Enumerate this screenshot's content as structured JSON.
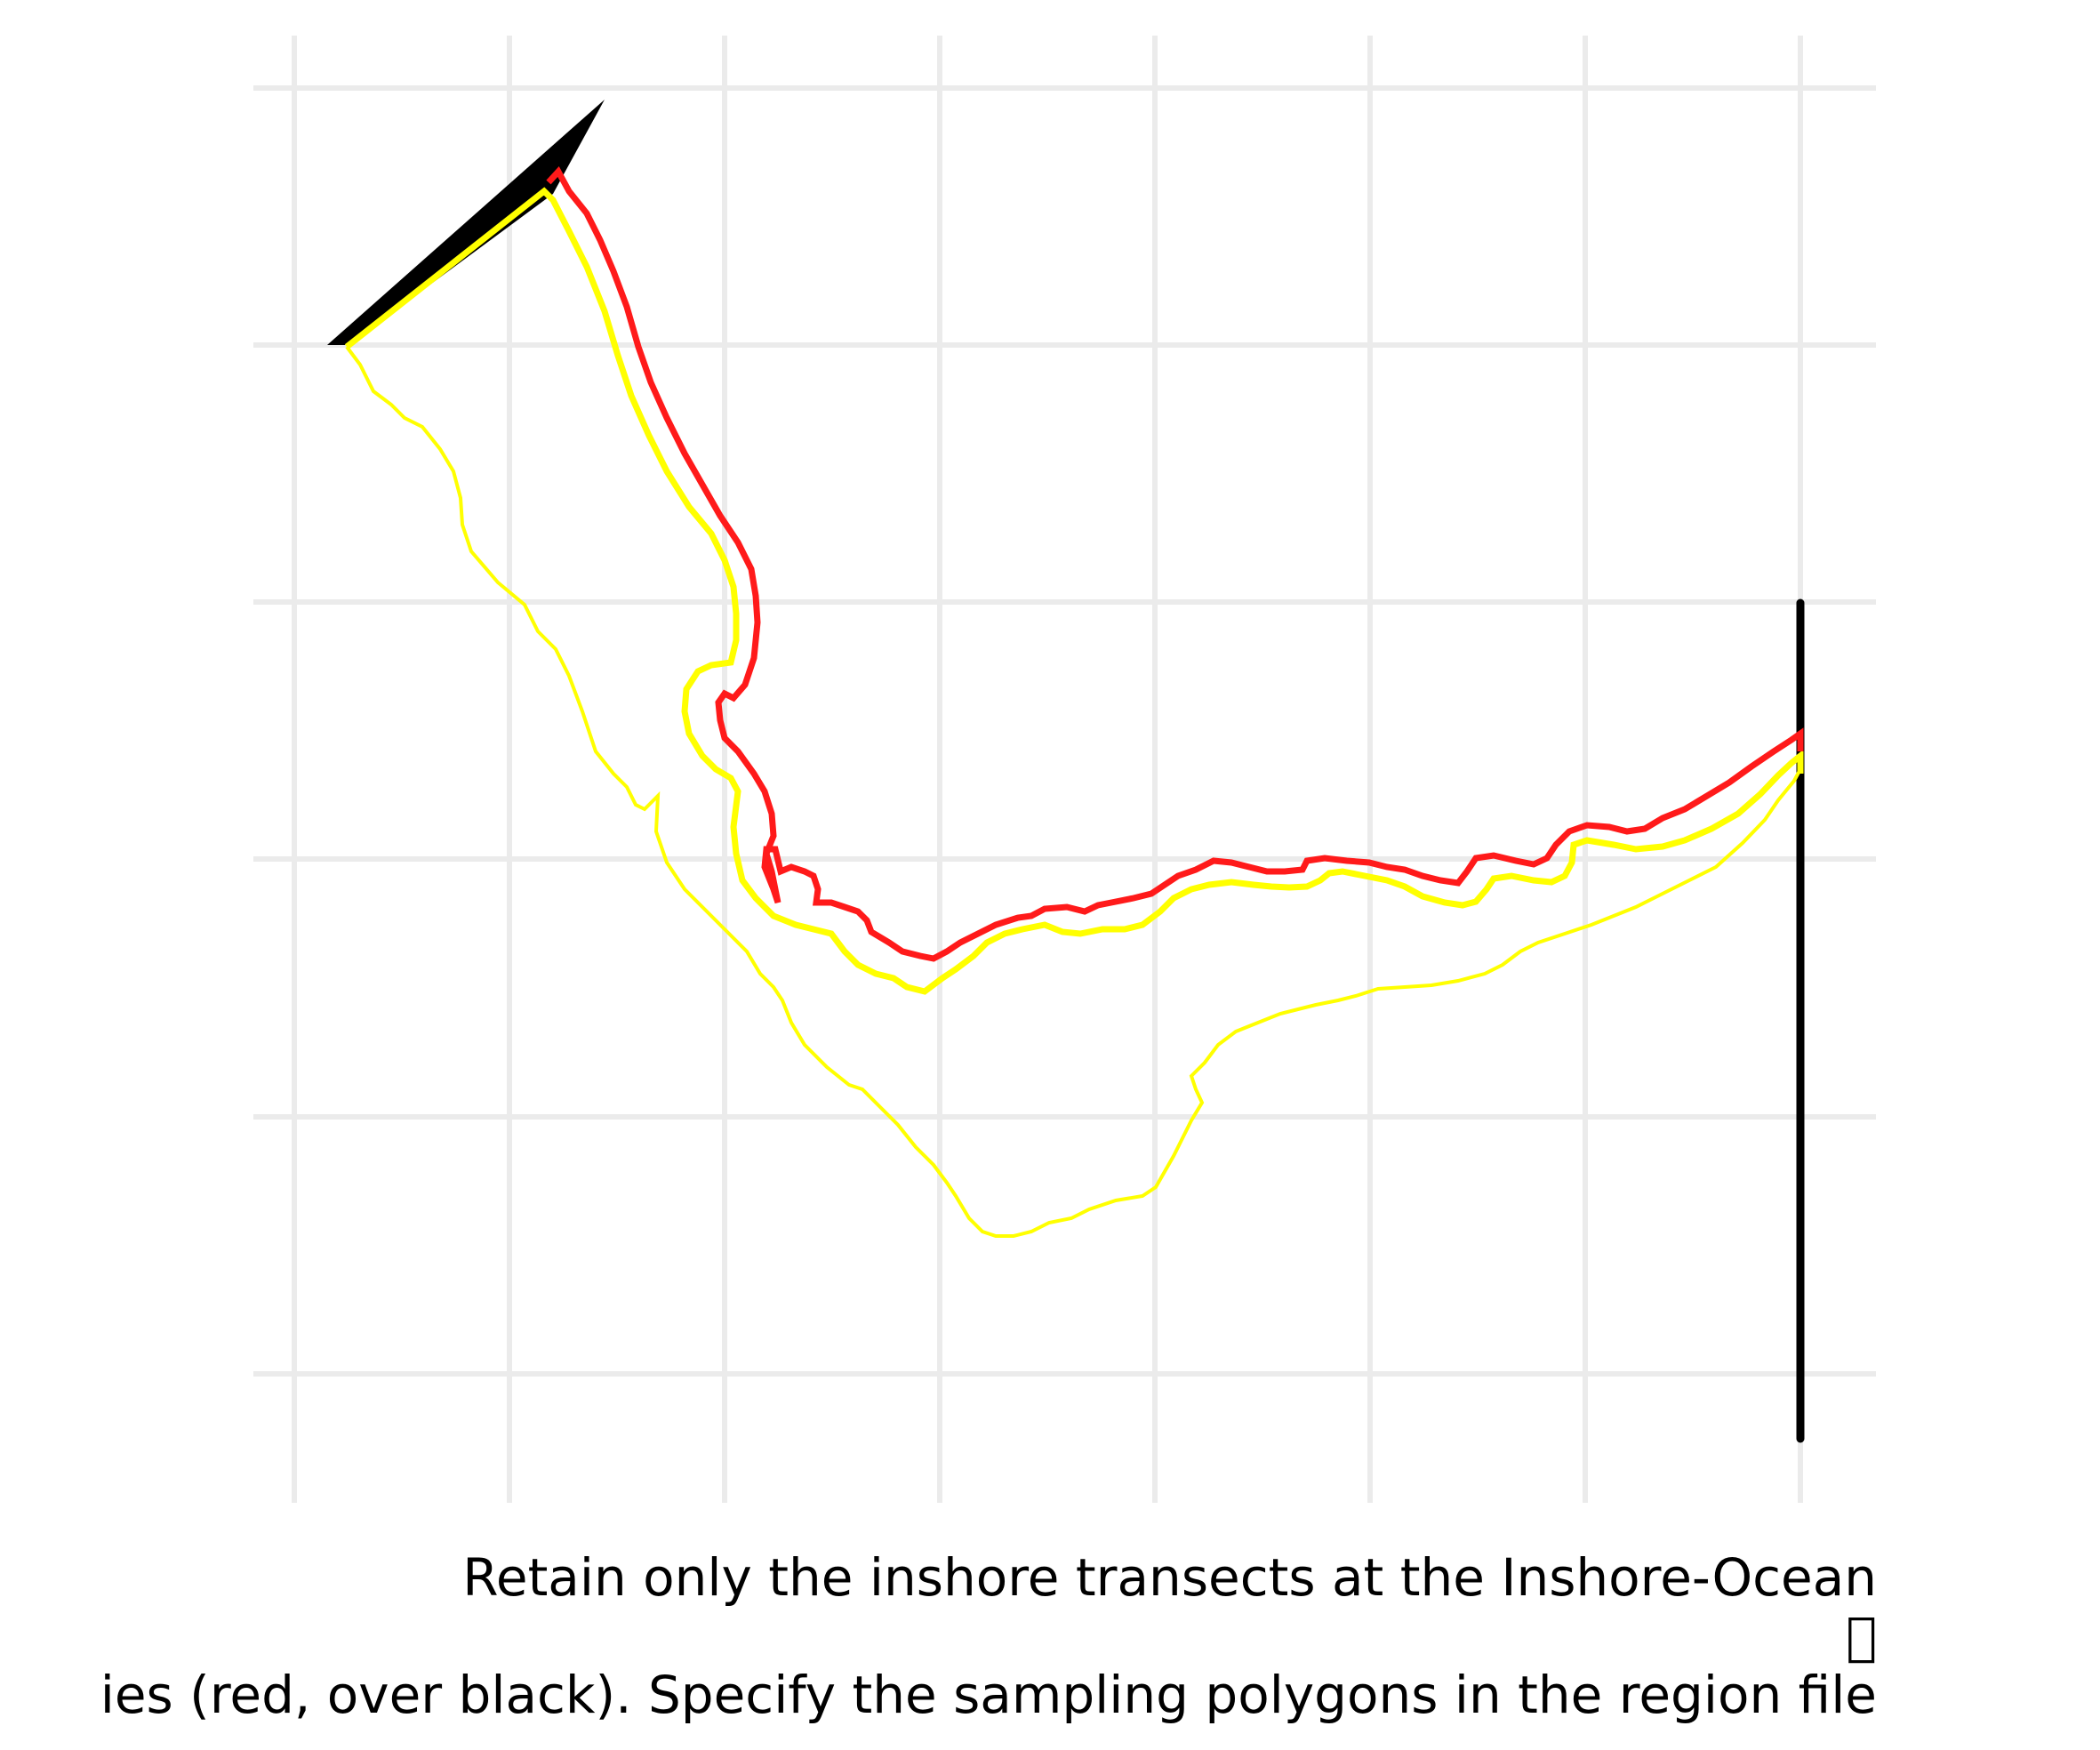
{
  "caption": {
    "line1": "Retain only the inshore transects at the Inshore-Ocean",
    "line2": "\u0000",
    "line3": "ies (red, over black). Specify the sampling polygons in the region file"
  },
  "colors": {
    "grid": "#ebebeb",
    "outer_boundary": "#ffff00",
    "inshore_boundary": "#ff1a1a",
    "inshore_offset": "#ffff00",
    "transect": "#000000"
  }
}
